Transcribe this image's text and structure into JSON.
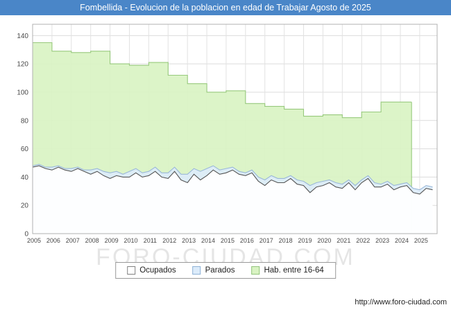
{
  "header": {
    "title": "Fombellida - Evolucion de la poblacion en edad de Trabajar Agosto de 2025",
    "bg_color": "#4a86c8",
    "text_color": "#ffffff"
  },
  "watermark": {
    "text": "FORO-CIUDAD.COM"
  },
  "footer": {
    "url": "http://www.foro-ciudad.com"
  },
  "legend": {
    "items": [
      {
        "label": "Ocupados",
        "fill": "#ffffff",
        "border": "#808080"
      },
      {
        "label": "Parados",
        "fill": "#dcebfa",
        "border": "#8fb2d6"
      },
      {
        "label": "Hab. entre 16-64",
        "fill": "#d9f3c3",
        "border": "#93c47d"
      }
    ]
  },
  "chart_data": {
    "type": "area",
    "title": "Fombellida - Evolucion de la poblacion en edad de Trabajar Agosto de 2025",
    "xlabel": "",
    "ylabel": "",
    "x_range": [
      2005,
      2025.9
    ],
    "y_range": [
      0,
      148
    ],
    "y_ticks": [
      0,
      20,
      40,
      60,
      80,
      100,
      120,
      140
    ],
    "x_ticks": [
      2005,
      2006,
      2007,
      2008,
      2009,
      2010,
      2011,
      2012,
      2013,
      2014,
      2015,
      2016,
      2017,
      2018,
      2019,
      2020,
      2021,
      2022,
      2023,
      2024,
      2025
    ],
    "grid": true,
    "legend_position": "bottom",
    "series": [
      {
        "name": "Hab. entre 16-64",
        "style": "step",
        "fill": "#d9f3c3",
        "line": "#97c97c",
        "years": [
          2005,
          2006,
          2007,
          2008,
          2009,
          2010,
          2011,
          2012,
          2013,
          2014,
          2015,
          2016,
          2017,
          2018,
          2019,
          2020,
          2021,
          2022,
          2023,
          2024
        ],
        "values": [
          135,
          129,
          128,
          129,
          120,
          119,
          121,
          112,
          106,
          100,
          101,
          92,
          90,
          88,
          83,
          84,
          82,
          86,
          93,
          93
        ],
        "end_x": 2024.58
      },
      {
        "name": "Parados",
        "style": "line",
        "fill": "#dcebfa",
        "line": "#9ab8d8",
        "start_x": 2005,
        "step_x": 0.33333,
        "values": [
          48,
          49,
          47,
          47,
          48,
          46,
          46,
          47,
          45,
          45,
          46,
          44,
          43,
          44,
          42,
          44,
          46,
          43,
          44,
          47,
          43,
          43,
          47,
          42,
          42,
          46,
          44,
          46,
          48,
          45,
          46,
          47,
          44,
          43,
          45,
          40,
          38,
          41,
          39,
          39,
          41,
          38,
          37,
          34,
          36,
          37,
          38,
          36,
          35,
          38,
          34,
          38,
          41,
          36,
          35,
          37,
          34,
          35,
          36,
          32,
          31,
          34,
          33
        ]
      },
      {
        "name": "Ocupados",
        "style": "line",
        "fill": "#ffffff",
        "line": "#555555",
        "start_x": 2005,
        "step_x": 0.33333,
        "values": [
          47,
          48,
          46,
          45,
          47,
          45,
          44,
          46,
          44,
          42,
          44,
          41,
          39,
          41,
          40,
          40,
          43,
          40,
          41,
          44,
          40,
          39,
          44,
          38,
          36,
          42,
          38,
          41,
          45,
          42,
          43,
          45,
          42,
          41,
          43,
          37,
          34,
          38,
          36,
          36,
          39,
          35,
          34,
          29,
          33,
          34,
          36,
          33,
          32,
          36,
          31,
          36,
          39,
          33,
          33,
          35,
          31,
          33,
          34,
          29,
          28,
          32,
          31
        ]
      }
    ]
  }
}
